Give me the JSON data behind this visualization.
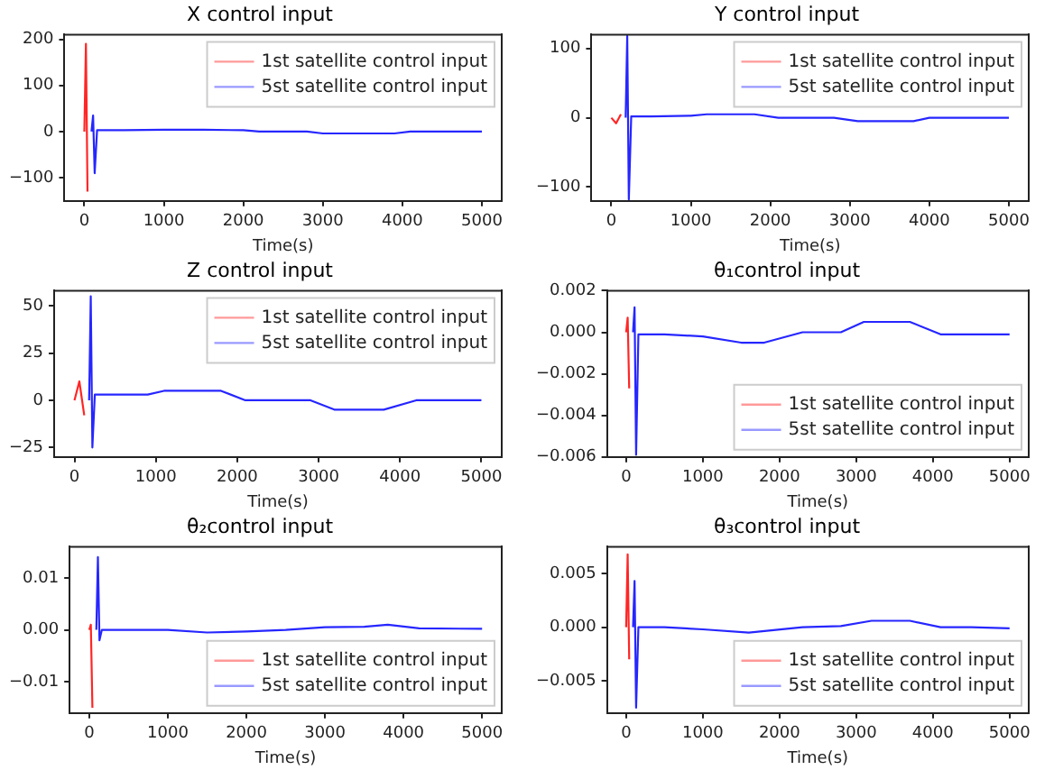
{
  "chart_data": [
    {
      "type": "line",
      "title": "X control input",
      "xlabel": "Time(s)",
      "xlim": [
        -250,
        5250
      ],
      "xticks": [
        0,
        1000,
        2000,
        3000,
        4000,
        5000
      ],
      "ylim": [
        -150,
        210
      ],
      "yticks": [
        {
          "value": -100,
          "label": "−100"
        },
        0,
        100,
        200
      ],
      "grid": false,
      "legend": "top right",
      "line_style": "solid",
      "marker": "none",
      "series": [
        {
          "name": "1st satellite control input",
          "color": "#ff0000",
          "x": [
            0,
            20,
            40
          ],
          "values": [
            0,
            190,
            -130
          ]
        },
        {
          "name": "5st satellite control input",
          "color": "#0000ff",
          "x": [
            90,
            110,
            130,
            160,
            500,
            1000,
            1500,
            2000,
            2200,
            2800,
            3000,
            3500,
            3900,
            4100,
            4500,
            5000
          ],
          "values": [
            0,
            35,
            -90,
            3,
            3,
            4,
            4,
            3,
            0,
            0,
            -4,
            -4,
            -4,
            0,
            0,
            0
          ]
        }
      ]
    },
    {
      "type": "line",
      "title": "Y control input",
      "xlabel": "Time(s)",
      "xlim": [
        -250,
        5250
      ],
      "xticks": [
        0,
        1000,
        2000,
        3000,
        4000,
        5000
      ],
      "ylim": [
        -120,
        120
      ],
      "yticks": [
        {
          "value": -100,
          "label": "−100"
        },
        0,
        100
      ],
      "grid": false,
      "legend": "top right",
      "line_style": "solid",
      "marker": "none",
      "series": [
        {
          "name": "1st satellite control input",
          "color": "#ff0000",
          "x": [
            0,
            60,
            120
          ],
          "values": [
            0,
            -8,
            5
          ]
        },
        {
          "name": "5st satellite control input",
          "color": "#0000ff",
          "x": [
            180,
            200,
            220,
            250,
            500,
            1000,
            1200,
            1800,
            2100,
            2800,
            3100,
            3800,
            4000,
            4500,
            5000
          ],
          "values": [
            0,
            118,
            -118,
            2,
            2,
            3,
            5,
            5,
            0,
            0,
            -5,
            -5,
            0,
            0,
            0
          ]
        }
      ]
    },
    {
      "type": "line",
      "title": "Z control input",
      "xlabel": "Time(s)",
      "xlim": [
        -250,
        5250
      ],
      "xticks": [
        0,
        1000,
        2000,
        3000,
        4000,
        5000
      ],
      "ylim": [
        -30,
        58
      ],
      "yticks": [
        {
          "value": -25,
          "label": "−25"
        },
        0,
        25,
        50
      ],
      "grid": false,
      "legend": "top right",
      "line_style": "solid",
      "marker": "none",
      "series": [
        {
          "name": "1st satellite control input",
          "color": "#ff0000",
          "x": [
            0,
            60,
            120
          ],
          "values": [
            0,
            10,
            -8
          ]
        },
        {
          "name": "5st satellite control input",
          "color": "#0000ff",
          "x": [
            180,
            200,
            220,
            250,
            500,
            900,
            1100,
            1800,
            2100,
            2900,
            3200,
            3800,
            4200,
            4600,
            5000
          ],
          "values": [
            0,
            55,
            -25,
            3,
            3,
            3,
            5,
            5,
            0,
            0,
            -5,
            -5,
            0,
            0,
            0
          ]
        }
      ]
    },
    {
      "type": "line",
      "title": "θ₁control input",
      "xlabel": "Time(s)",
      "xlim": [
        -250,
        5250
      ],
      "xticks": [
        0,
        1000,
        2000,
        3000,
        4000,
        5000
      ],
      "ylim": [
        -0.006,
        0.002
      ],
      "yticks": [
        {
          "value": -0.006,
          "label": "−0.006"
        },
        {
          "value": -0.004,
          "label": "−0.004"
        },
        {
          "value": -0.002,
          "label": "−0.002"
        },
        {
          "value": 0,
          "label": "0.000"
        },
        {
          "value": 0.002,
          "label": "0.002"
        }
      ],
      "grid": false,
      "legend": "bottom right",
      "line_style": "solid",
      "marker": "none",
      "series": [
        {
          "name": "1st satellite control input",
          "color": "#ff0000",
          "x": [
            0,
            20,
            40
          ],
          "values": [
            0,
            0.0007,
            -0.0027
          ]
        },
        {
          "name": "5st satellite control input",
          "color": "#0000ff",
          "x": [
            90,
            110,
            130,
            160,
            500,
            1000,
            1500,
            1800,
            2300,
            2800,
            3100,
            3700,
            4100,
            4500,
            5000
          ],
          "values": [
            0,
            0.0012,
            -0.0059,
            -0.0001,
            -0.0001,
            -0.0002,
            -0.0005,
            -0.0005,
            0,
            0,
            0.0005,
            0.0005,
            -0.0001,
            -0.0001,
            -0.0001
          ]
        }
      ]
    },
    {
      "type": "line",
      "title": "θ₂control input",
      "xlabel": "Time(s)",
      "xlim": [
        -250,
        5250
      ],
      "xticks": [
        0,
        1000,
        2000,
        3000,
        4000,
        5000
      ],
      "ylim": [
        -0.016,
        0.016
      ],
      "yticks": [
        {
          "value": -0.01,
          "label": "−0.01"
        },
        {
          "value": 0,
          "label": "0.00"
        },
        {
          "value": 0.01,
          "label": "0.01"
        }
      ],
      "grid": false,
      "legend": "bottom right",
      "line_style": "solid",
      "marker": "none",
      "series": [
        {
          "name": "1st satellite control input",
          "color": "#ff0000",
          "x": [
            0,
            20,
            40
          ],
          "values": [
            0,
            0.001,
            -0.015
          ]
        },
        {
          "name": "5st satellite control input",
          "color": "#0000ff",
          "x": [
            90,
            110,
            130,
            160,
            500,
            1000,
            1500,
            2000,
            2500,
            3000,
            3500,
            3800,
            4200,
            5000
          ],
          "values": [
            0,
            0.014,
            -0.002,
            0,
            0,
            0,
            -0.0005,
            -0.0003,
            0,
            0.0005,
            0.0006,
            0.001,
            0.0003,
            0.0002
          ]
        }
      ]
    },
    {
      "type": "line",
      "title": "θ₃control input",
      "xlabel": "Time(s)",
      "xlim": [
        -250,
        5250
      ],
      "xticks": [
        0,
        1000,
        2000,
        3000,
        4000,
        5000
      ],
      "ylim": [
        -0.008,
        0.0075
      ],
      "yticks": [
        {
          "value": -0.005,
          "label": "−0.005"
        },
        {
          "value": 0,
          "label": "0.000"
        },
        {
          "value": 0.005,
          "label": "0.005"
        }
      ],
      "grid": false,
      "legend": "bottom right",
      "line_style": "solid",
      "marker": "none",
      "series": [
        {
          "name": "1st satellite control input",
          "color": "#ff0000",
          "x": [
            0,
            20,
            40
          ],
          "values": [
            0,
            0.0068,
            -0.003
          ]
        },
        {
          "name": "5st satellite control input",
          "color": "#0000ff",
          "x": [
            90,
            110,
            130,
            160,
            500,
            1000,
            1600,
            2300,
            2800,
            3200,
            3700,
            4100,
            4500,
            5000
          ],
          "values": [
            0,
            0.0043,
            -0.0075,
            0,
            0,
            -0.0002,
            -0.0005,
            0,
            0.0001,
            0.0006,
            0.0006,
            0,
            0,
            -0.0001
          ]
        }
      ]
    }
  ]
}
